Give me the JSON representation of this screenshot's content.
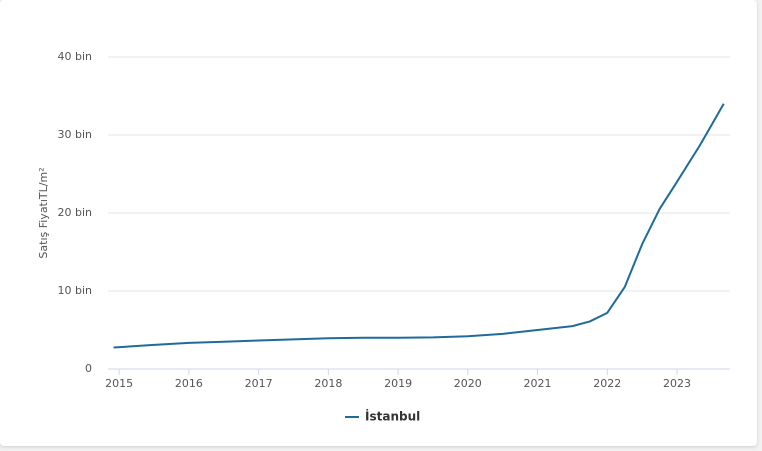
{
  "chart_data": {
    "type": "line",
    "y_label": "Satış FiyatıTL/m²",
    "x": [
      2014.92,
      2015.5,
      2016,
      2016.5,
      2017,
      2017.5,
      2018,
      2018.5,
      2019,
      2019.5,
      2020,
      2020.5,
      2021,
      2021.5,
      2021.75,
      2022,
      2022.25,
      2022.5,
      2022.75,
      2023,
      2023.33,
      2023.67
    ],
    "series": [
      {
        "name": "İstanbul",
        "color": "#1f6b99",
        "values": [
          2750,
          3100,
          3350,
          3500,
          3650,
          3800,
          3950,
          4000,
          4000,
          4050,
          4200,
          4500,
          5000,
          5500,
          6100,
          7200,
          10500,
          16000,
          20500,
          24000,
          28700,
          34000
        ]
      }
    ],
    "xlim": [
      2014.84,
      2023.76
    ],
    "xticks": [
      2015,
      2016,
      2017,
      2018,
      2019,
      2020,
      2021,
      2022,
      2023
    ],
    "ylim": [
      0,
      40000
    ],
    "yticks": [
      0,
      {
        "value": 10000,
        "label": "10 bin"
      },
      {
        "value": 20000,
        "label": "20 bin"
      },
      {
        "value": 30000,
        "label": "30 bin"
      },
      {
        "value": 40000,
        "label": "40 bin"
      }
    ],
    "grid": true
  }
}
